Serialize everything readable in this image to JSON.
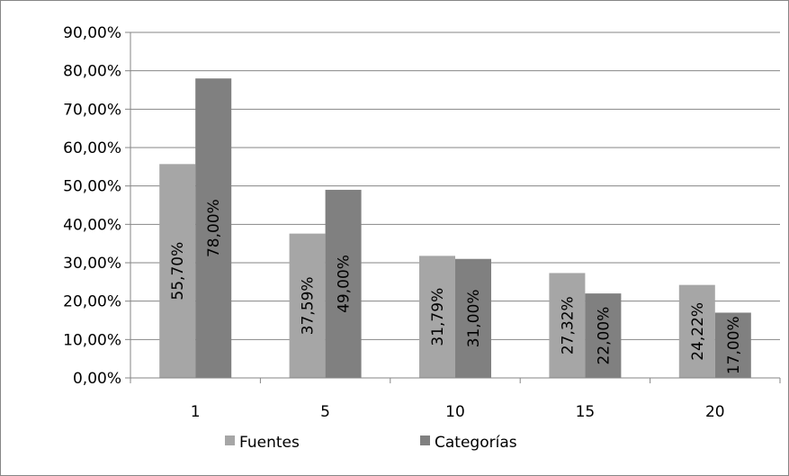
{
  "chart_data": {
    "type": "bar",
    "categories": [
      "1",
      "5",
      "10",
      "15",
      "20"
    ],
    "series": [
      {
        "name": "Fuentes",
        "color": "#a6a6a6",
        "values": [
          55.7,
          37.59,
          31.79,
          27.32,
          24.22
        ],
        "labels": [
          "55,70%",
          "37,59%",
          "31,79%",
          "27,32%",
          "24,22%"
        ]
      },
      {
        "name": "Categorías",
        "color": "#808080",
        "values": [
          78.0,
          49.0,
          31.0,
          22.0,
          17.0
        ],
        "labels": [
          "78,00%",
          "49,00%",
          "31,00%",
          "22,00%",
          "17,00%"
        ]
      }
    ],
    "y_ticks": [
      "0,00%",
      "10,00%",
      "20,00%",
      "30,00%",
      "40,00%",
      "50,00%",
      "60,00%",
      "70,00%",
      "80,00%",
      "90,00%"
    ],
    "ylim": [
      0,
      90
    ],
    "grid": true,
    "legend_position": "bottom",
    "title": "",
    "xlabel": "",
    "ylabel": ""
  }
}
